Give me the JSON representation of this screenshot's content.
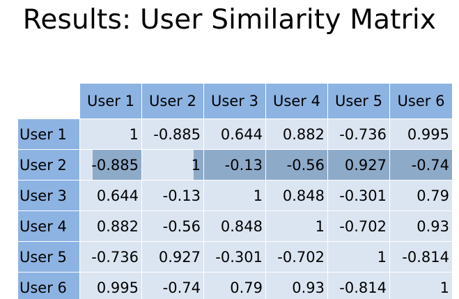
{
  "title": "Results: User Similarity Matrix",
  "table": {
    "columns": [
      "User 1",
      "User 2",
      "User 3",
      "User 4",
      "User 5",
      "User 6"
    ],
    "rows": [
      {
        "label": "User 1",
        "values": [
          "1",
          "-0.885",
          "0.644",
          "0.882",
          "-0.736",
          "0.995"
        ]
      },
      {
        "label": "User 2",
        "values": [
          "-0.885",
          "1",
          "-0.13",
          "-0.56",
          "0.927",
          "-0.74"
        ]
      },
      {
        "label": "User 3",
        "values": [
          "0.644",
          "-0.13",
          "1",
          "0.848",
          "-0.301",
          "0.79"
        ]
      },
      {
        "label": "User 4",
        "values": [
          "0.882",
          "-0.56",
          "0.848",
          "1",
          "-0.702",
          "0.93"
        ]
      },
      {
        "label": "User 5",
        "values": [
          "-0.736",
          "0.927",
          "-0.301",
          "-0.702",
          "1",
          "-0.814"
        ]
      },
      {
        "label": "User 6",
        "values": [
          "0.995",
          "-0.74",
          "0.79",
          "0.93",
          "-0.814",
          "1"
        ]
      }
    ],
    "highlighted_row": "User 2"
  },
  "colors": {
    "header": "#8db3e2",
    "cell": "#dbe5f1",
    "highlight": "#8eaac9"
  }
}
